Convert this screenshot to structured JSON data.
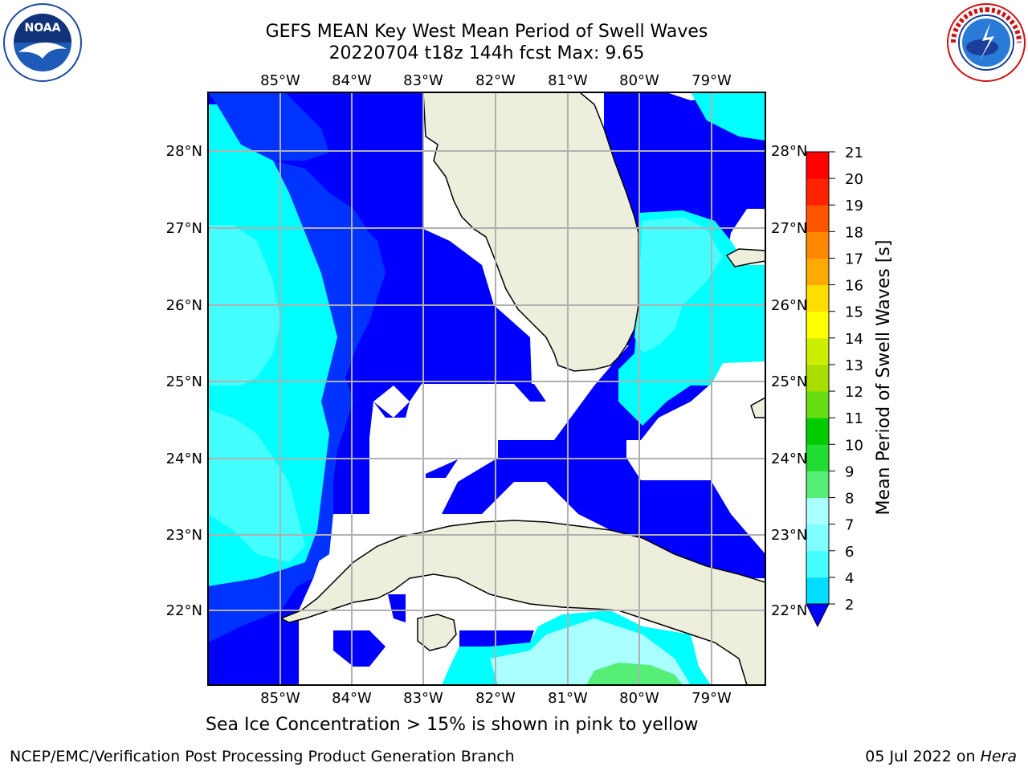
{
  "title": {
    "line1": "GEFS MEAN Key West Mean Period of Swell Waves",
    "line2": "20220704 t18z 144h fcst   Max: 9.65"
  },
  "logos": {
    "left": {
      "icon": "noaa-logo",
      "text": "NOAA"
    },
    "right": {
      "icon": "nws-logo",
      "text": "NATIONAL WEATHER SERVICE"
    }
  },
  "map": {
    "lon_labels": [
      "85°W",
      "84°W",
      "83°W",
      "82°W",
      "81°W",
      "80°W",
      "79°W"
    ],
    "lat_labels": [
      "28°N",
      "27°N",
      "26°N",
      "25°N",
      "24°N",
      "23°N",
      "22°N"
    ],
    "colors": {
      "land": "#eeeedd",
      "grid": "#b0b0b0",
      "coast": "#000000"
    }
  },
  "colorbar": {
    "label": "Mean Period of Swell Waves [s]",
    "ticks": [
      "2",
      "4",
      "6",
      "7",
      "8",
      "9",
      "10",
      "11",
      "12",
      "13",
      "14",
      "15",
      "16",
      "17",
      "18",
      "19",
      "20",
      "21"
    ],
    "colors": [
      "#0033ff",
      "#00ddff",
      "#44ffff",
      "#80ffff",
      "#aaffff",
      "#55ee77",
      "#22dd33",
      "#00cc00",
      "#66dd11",
      "#aadd00",
      "#ccee00",
      "#ffff00",
      "#ffdd00",
      "#ffaa00",
      "#ff8800",
      "#ff5500",
      "#ff2200",
      "#ff0000"
    ],
    "extend_color": "#0000ff"
  },
  "footer": {
    "note": "Sea Ice Concentration > 15% is shown in pink to yellow",
    "left": "NCEP/EMC/Verification Post Processing Product Generation Branch",
    "right_date": "05 Jul 2022 on ",
    "right_host": "Hera"
  }
}
